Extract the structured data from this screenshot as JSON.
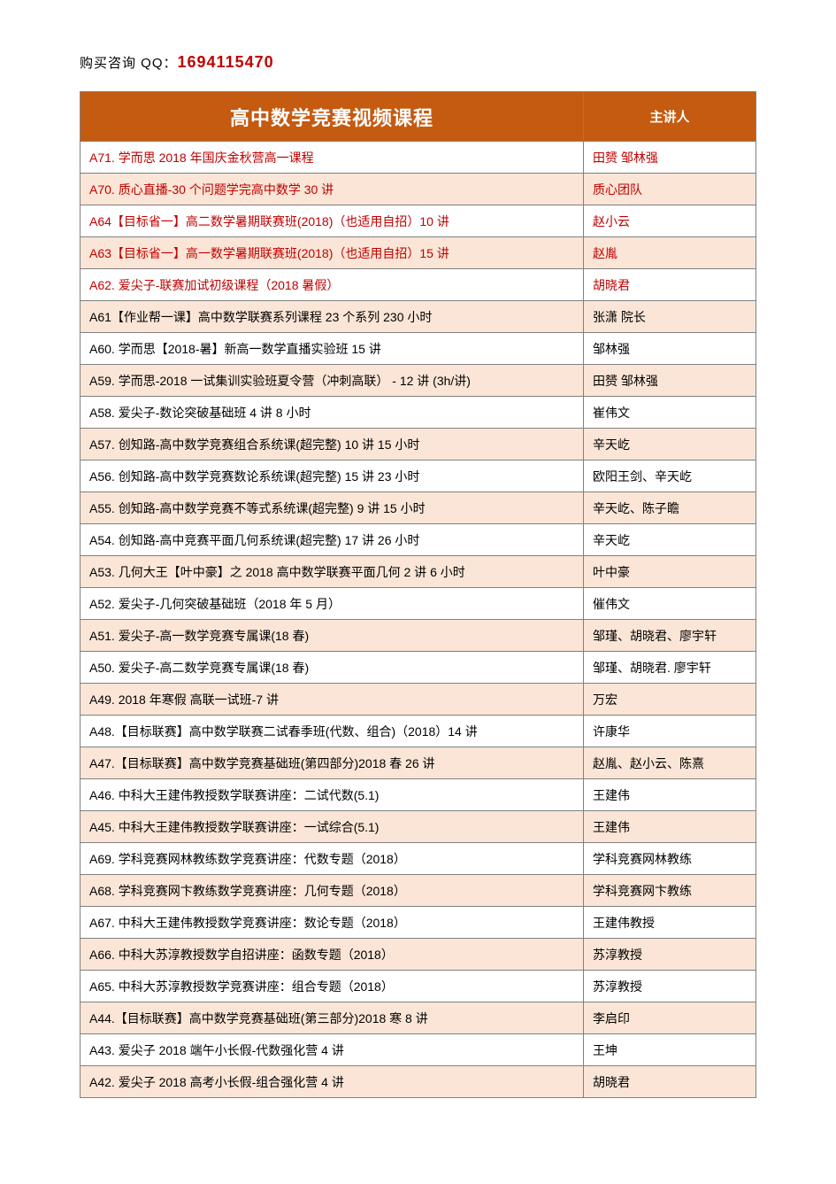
{
  "contact": {
    "label": "购买咨询 QQ：",
    "qq": "1694115470",
    "qq_color": "#c00000"
  },
  "table": {
    "header": {
      "course": "高中数学竞赛视频课程",
      "lecturer": "主讲人",
      "bg_color": "#c55a11",
      "text_color": "#ffffff"
    },
    "highlight_bg": "#fbe5d6",
    "red_text": "#c00000",
    "border_color": "#808080",
    "rows": [
      {
        "course": "A71. 学而思 2018 年国庆金秋营高一课程",
        "lecturer": "田赟  邹林强",
        "highlight": false,
        "red": true
      },
      {
        "course": "A70. 质心直播-30 个问题学完高中数学  30 讲",
        "lecturer": "质心团队",
        "highlight": true,
        "red": true
      },
      {
        "course": "A64【目标省一】高二数学暑期联赛班(2018)（也适用自招）10 讲",
        "lecturer": "赵小云",
        "highlight": false,
        "red": true
      },
      {
        "course": "A63【目标省一】高一数学暑期联赛班(2018)（也适用自招）15 讲",
        "lecturer": "赵胤",
        "highlight": true,
        "red": true
      },
      {
        "course": "A62. 爱尖子-联赛加试初级课程（2018 暑假）",
        "lecturer": "胡晓君",
        "highlight": false,
        "red": true
      },
      {
        "course": "A61【作业帮一课】高中数学联赛系列课程  23 个系列 230 小时",
        "lecturer": "张潇  院长",
        "highlight": true,
        "red": false
      },
      {
        "course": "A60. 学而思【2018-暑】新高一数学直播实验班  15 讲",
        "lecturer": "邹林强",
        "highlight": false,
        "red": false
      },
      {
        "course": "A59. 学而思-2018 一试集训实验班夏令营（冲刺高联） -  12 讲 (3h/讲)",
        "lecturer": "田赟  邹林强",
        "highlight": true,
        "red": false
      },
      {
        "course": "A58. 爱尖子-数论突破基础班  4 讲  8 小时",
        "lecturer": "崔伟文",
        "highlight": false,
        "red": false
      },
      {
        "course": "A57.  创知路-高中数学竞赛组合系统课(超完整)  10 讲 15 小时",
        "lecturer": "辛天屹",
        "highlight": true,
        "red": false
      },
      {
        "course": "A56.  创知路-高中数学竞赛数论系统课(超完整)  15 讲 23 小时",
        "lecturer": "欧阳王剑、辛天屹",
        "highlight": false,
        "red": false
      },
      {
        "course": "A55.  创知路-高中数学竞赛不等式系统课(超完整)  9 讲 15 小时",
        "lecturer": "辛天屹、陈子瞻",
        "highlight": true,
        "red": false
      },
      {
        "course": "A54.  创知路-高中竞赛平面几何系统课(超完整)  17 讲 26 小时",
        "lecturer": "辛天屹",
        "highlight": false,
        "red": false
      },
      {
        "course": "A53.  几何大王【叶中豪】之 2018 高中数学联赛平面几何  2 讲 6 小时",
        "lecturer": "叶中豪",
        "highlight": true,
        "red": false
      },
      {
        "course": "A52. 爱尖子-几何突破基础班（2018 年 5 月）",
        "lecturer": "催伟文",
        "highlight": false,
        "red": false
      },
      {
        "course": "A51. 爱尖子-高一数学竞赛专属课(18 春)",
        "lecturer": "邹瑾、胡晓君、廖宇轩",
        "highlight": true,
        "red": false
      },
      {
        "course": "A50. 爱尖子-高二数学竞赛专属课(18 春)",
        "lecturer": "邹瑾、胡晓君. 廖宇轩",
        "highlight": false,
        "red": false
      },
      {
        "course": "A49. 2018 年寒假  高联一试班-7 讲",
        "lecturer": "万宏",
        "highlight": true,
        "red": false
      },
      {
        "course": "A48.【目标联赛】高中数学联赛二试春季班(代数、组合)（2018）14 讲",
        "lecturer": "许康华",
        "highlight": false,
        "red": false
      },
      {
        "course": "A47.【目标联赛】高中数学竞赛基础班(第四部分)2018 春 26 讲",
        "lecturer": "赵胤、赵小云、陈熹",
        "highlight": true,
        "red": false
      },
      {
        "course": "A46. 中科大王建伟教授数学联赛讲座：二试代数(5.1)",
        "lecturer": "王建伟",
        "highlight": false,
        "red": false
      },
      {
        "course": "A45. 中科大王建伟教授数学联赛讲座：一试综合(5.1)",
        "lecturer": "王建伟",
        "highlight": true,
        "red": false
      },
      {
        "course": "A69. 学科竞赛网林教练数学竞赛讲座：代数专题（2018）",
        "lecturer": "学科竞赛网林教练",
        "highlight": false,
        "red": false
      },
      {
        "course": "A68. 学科竞赛网卞教练数学竞赛讲座：几何专题（2018）",
        "lecturer": "学科竞赛网卞教练",
        "highlight": true,
        "red": false
      },
      {
        "course": "A67. 中科大王建伟教授数学竞赛讲座：数论专题（2018）",
        "lecturer": "王建伟教授",
        "highlight": false,
        "red": false
      },
      {
        "course": "A66. 中科大苏淳教授数学自招讲座：函数专题（2018）",
        "lecturer": "苏淳教授",
        "highlight": true,
        "red": false
      },
      {
        "course": "A65. 中科大苏淳教授数学竞赛讲座：组合专题（2018）",
        "lecturer": "苏淳教授",
        "highlight": false,
        "red": false
      },
      {
        "course": "A44.【目标联赛】高中数学竞赛基础班(第三部分)2018 寒 8 讲",
        "lecturer": "李启印",
        "highlight": true,
        "red": false
      },
      {
        "course": "A43.  爱尖子 2018 端午小长假-代数强化营  4 讲",
        "lecturer": "王坤",
        "highlight": false,
        "red": false
      },
      {
        "course": "A42.  爱尖子 2018 高考小长假-组合强化营  4 讲",
        "lecturer": "胡晓君",
        "highlight": true,
        "red": false
      }
    ]
  }
}
